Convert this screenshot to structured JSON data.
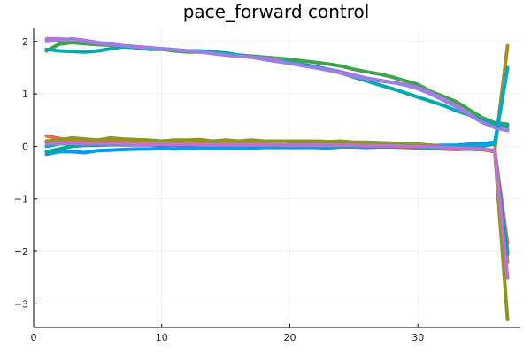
{
  "chart_data": {
    "type": "line",
    "title": "pace_forward control",
    "xlabel": "",
    "ylabel": "",
    "xlim": [
      0,
      38
    ],
    "ylim": [
      -3.45,
      2.25
    ],
    "xticks": [
      0,
      10,
      20,
      30
    ],
    "yticks": [
      -3,
      -2,
      -1,
      0,
      1,
      2
    ],
    "grid": true,
    "legend": "none",
    "x": [
      1,
      2,
      3,
      4,
      5,
      6,
      7,
      8,
      9,
      10,
      11,
      12,
      13,
      14,
      15,
      16,
      17,
      18,
      19,
      20,
      21,
      22,
      23,
      24,
      25,
      26,
      27,
      28,
      29,
      30,
      31,
      32,
      33,
      34,
      35,
      36,
      37
    ],
    "series": [
      {
        "color": "#009af9",
        "values": [
          -0.15,
          -0.1,
          -0.1,
          -0.12,
          -0.08,
          -0.07,
          -0.06,
          -0.05,
          -0.05,
          -0.04,
          -0.05,
          -0.04,
          -0.03,
          -0.03,
          -0.04,
          -0.04,
          -0.03,
          -0.02,
          -0.02,
          -0.02,
          -0.02,
          -0.02,
          -0.03,
          -0.01,
          -0.01,
          -0.02,
          -0.01,
          -0.01,
          0.0,
          0.0,
          0.01,
          0.02,
          0.02,
          0.04,
          0.05,
          0.08,
          1.5
        ]
      },
      {
        "color": "#e26f46",
        "values": [
          0.2,
          0.15,
          0.12,
          0.1,
          0.1,
          0.08,
          0.08,
          0.07,
          0.06,
          0.05,
          0.05,
          0.05,
          0.04,
          0.04,
          0.04,
          0.03,
          0.03,
          0.03,
          0.02,
          0.02,
          0.02,
          0.02,
          0.02,
          0.01,
          0.01,
          0.0,
          0.0,
          -0.01,
          -0.02,
          -0.03,
          -0.04,
          -0.05,
          -0.06,
          -0.05,
          -0.06,
          -0.08,
          -2.0
        ]
      },
      {
        "color": "#3da44d",
        "values": [
          1.82,
          1.95,
          1.98,
          1.96,
          1.94,
          1.93,
          1.9,
          1.88,
          1.85,
          1.85,
          1.82,
          1.8,
          1.8,
          1.78,
          1.76,
          1.74,
          1.72,
          1.7,
          1.68,
          1.66,
          1.63,
          1.6,
          1.57,
          1.53,
          1.47,
          1.42,
          1.38,
          1.32,
          1.25,
          1.18,
          1.05,
          0.95,
          0.85,
          0.7,
          0.55,
          0.45,
          0.42
        ]
      },
      {
        "color": "#c271d2",
        "values": [
          2.05,
          2.05,
          2.03,
          2.0,
          1.97,
          1.94,
          1.92,
          1.9,
          1.88,
          1.86,
          1.84,
          1.82,
          1.8,
          1.78,
          1.75,
          1.72,
          1.7,
          1.68,
          1.64,
          1.6,
          1.56,
          1.52,
          1.47,
          1.42,
          1.36,
          1.3,
          1.26,
          1.22,
          1.18,
          1.12,
          1.02,
          0.9,
          0.78,
          0.62,
          0.48,
          0.38,
          0.32
        ]
      },
      {
        "color": "#ac8e18",
        "values": [
          0.05,
          0.08,
          0.12,
          0.1,
          0.09,
          0.1,
          0.09,
          0.08,
          0.08,
          0.09,
          0.1,
          0.1,
          0.11,
          0.1,
          0.09,
          0.08,
          0.08,
          0.09,
          0.1,
          0.09,
          0.08,
          0.07,
          0.08,
          0.07,
          0.06,
          0.06,
          0.05,
          0.05,
          0.04,
          0.02,
          0.0,
          -0.02,
          -0.04,
          -0.05,
          -0.06,
          -0.08,
          1.92
        ]
      },
      {
        "color": "#00a9ad",
        "values": [
          1.85,
          1.82,
          1.81,
          1.8,
          1.82,
          1.86,
          1.9,
          1.88,
          1.86,
          1.86,
          1.84,
          1.82,
          1.82,
          1.8,
          1.78,
          1.74,
          1.7,
          1.66,
          1.62,
          1.6,
          1.56,
          1.52,
          1.46,
          1.4,
          1.32,
          1.25,
          1.17,
          1.1,
          1.02,
          0.94,
          0.86,
          0.78,
          0.68,
          0.6,
          0.5,
          0.42,
          0.38
        ]
      },
      {
        "color": "#ed5e93",
        "values": [
          0.1,
          0.08,
          0.08,
          0.07,
          0.07,
          0.06,
          0.06,
          0.05,
          0.05,
          0.05,
          0.04,
          0.04,
          0.04,
          0.04,
          0.03,
          0.03,
          0.03,
          0.03,
          0.02,
          0.02,
          0.02,
          0.02,
          0.01,
          0.01,
          0.01,
          0.0,
          0.0,
          0.0,
          -0.01,
          -0.01,
          -0.02,
          -0.03,
          -0.04,
          -0.05,
          -0.06,
          -0.08,
          -1.85
        ]
      },
      {
        "color": "#c68125",
        "values": [
          0.08,
          0.1,
          0.14,
          0.12,
          0.1,
          0.11,
          0.1,
          0.1,
          0.09,
          0.1,
          0.1,
          0.11,
          0.1,
          0.09,
          0.1,
          0.09,
          0.09,
          0.1,
          0.1,
          0.1,
          0.09,
          0.1,
          0.09,
          0.08,
          0.08,
          0.07,
          0.06,
          0.06,
          0.05,
          0.04,
          0.02,
          0.0,
          -0.02,
          -0.04,
          -0.05,
          -0.08,
          -2.2
        ]
      },
      {
        "color": "#00a98d",
        "values": [
          -0.1,
          -0.05,
          0.0,
          0.02,
          0.02,
          0.03,
          0.03,
          0.03,
          0.03,
          0.02,
          0.02,
          0.02,
          0.02,
          0.02,
          0.02,
          0.02,
          0.02,
          0.02,
          0.02,
          0.02,
          0.01,
          0.01,
          0.01,
          0.0,
          0.0,
          0.0,
          -0.01,
          -0.01,
          -0.01,
          -0.02,
          -0.03,
          -0.04,
          -0.05,
          -0.05,
          -0.06,
          -0.08,
          -2.05
        ]
      },
      {
        "color": "#8e971d",
        "values": [
          0.1,
          0.12,
          0.16,
          0.14,
          0.12,
          0.16,
          0.14,
          0.13,
          0.12,
          0.1,
          0.12,
          0.12,
          0.13,
          0.1,
          0.12,
          0.1,
          0.12,
          0.1,
          0.1,
          0.1,
          0.1,
          0.1,
          0.09,
          0.1,
          0.08,
          0.08,
          0.07,
          0.06,
          0.05,
          0.04,
          0.02,
          0.0,
          -0.02,
          -0.04,
          -0.06,
          -0.1,
          -3.3
        ]
      },
      {
        "color": "#00a8cb",
        "values": [
          0.0,
          0.05,
          0.05,
          0.04,
          0.04,
          0.04,
          0.03,
          0.03,
          0.03,
          0.03,
          0.03,
          0.03,
          0.03,
          0.02,
          0.02,
          0.02,
          0.02,
          0.02,
          0.02,
          0.02,
          0.02,
          0.02,
          0.01,
          0.01,
          0.01,
          0.01,
          0.01,
          0.01,
          0.01,
          0.0,
          0.0,
          0.0,
          0.0,
          0.0,
          0.0,
          0.05,
          1.5
        ]
      },
      {
        "color": "#9b7fe8",
        "values": [
          2.0,
          2.02,
          2.05,
          2.02,
          1.98,
          1.95,
          1.92,
          1.9,
          1.88,
          1.86,
          1.84,
          1.82,
          1.8,
          1.77,
          1.74,
          1.72,
          1.7,
          1.66,
          1.62,
          1.58,
          1.54,
          1.5,
          1.45,
          1.4,
          1.34,
          1.29,
          1.25,
          1.22,
          1.17,
          1.1,
          1.0,
          0.88,
          0.76,
          0.6,
          0.46,
          0.36,
          0.3
        ]
      },
      {
        "color": "#c271d2",
        "values": [
          0.05,
          0.06,
          0.06,
          0.05,
          0.05,
          0.05,
          0.05,
          0.04,
          0.04,
          0.04,
          0.04,
          0.04,
          0.03,
          0.03,
          0.03,
          0.03,
          0.03,
          0.03,
          0.03,
          0.02,
          0.02,
          0.02,
          0.02,
          0.02,
          0.02,
          0.01,
          0.01,
          0.01,
          0.0,
          0.0,
          -0.01,
          -0.02,
          -0.03,
          -0.04,
          -0.05,
          -0.08,
          -2.5
        ]
      }
    ]
  }
}
